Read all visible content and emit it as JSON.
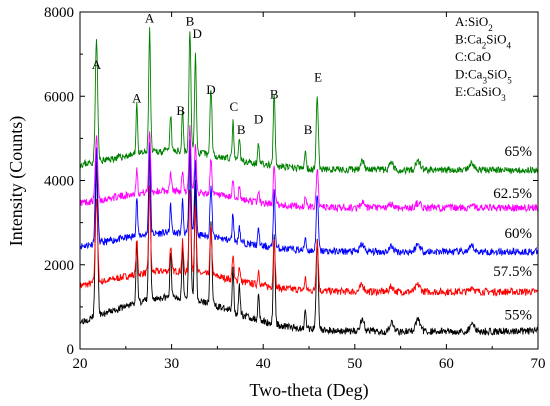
{
  "chart_data": {
    "type": "line",
    "xlabel": "Two-theta (Deg)",
    "ylabel": "Intensity (Counts)",
    "xlim": [
      20,
      70
    ],
    "ylim": [
      0,
      8000
    ],
    "x_ticks": [
      "20",
      "30",
      "40",
      "50",
      "60",
      "70"
    ],
    "y_ticks": [
      "0",
      "2000",
      "4000",
      "6000",
      "8000"
    ],
    "grid": false,
    "legend_position": "top-right",
    "legend": [
      {
        "key": "A",
        "phase": "SiO",
        "sub": "2",
        "tail": ""
      },
      {
        "key": "B",
        "phase": "Ca",
        "sub": "2",
        "tail": "SiO",
        "sub2": "4"
      },
      {
        "key": "C",
        "phase": "CaO",
        "sub": "",
        "tail": ""
      },
      {
        "key": "D",
        "phase": "Ca",
        "sub": "3",
        "tail": "SiO",
        "sub2": "5"
      },
      {
        "key": "E",
        "phase": "CaSiO",
        "sub": "3",
        "tail": ""
      }
    ],
    "peaks": [
      {
        "x": 21.8,
        "h": 1.0,
        "w": 0.18
      },
      {
        "x": 26.2,
        "h": 0.42,
        "w": 0.12
      },
      {
        "x": 27.6,
        "h": 1.0,
        "w": 0.14
      },
      {
        "x": 29.9,
        "h": 0.3,
        "w": 0.12
      },
      {
        "x": 31.2,
        "h": 0.35,
        "w": 0.12
      },
      {
        "x": 32.0,
        "h": 1.0,
        "w": 0.15
      },
      {
        "x": 32.6,
        "h": 0.8,
        "w": 0.14
      },
      {
        "x": 34.3,
        "h": 0.55,
        "w": 0.15
      },
      {
        "x": 36.7,
        "h": 0.3,
        "w": 0.12
      },
      {
        "x": 37.4,
        "h": 0.18,
        "w": 0.12
      },
      {
        "x": 39.5,
        "h": 0.18,
        "w": 0.12
      },
      {
        "x": 41.2,
        "h": 0.6,
        "w": 0.14
      },
      {
        "x": 44.6,
        "h": 0.15,
        "w": 0.12
      },
      {
        "x": 45.9,
        "h": 0.6,
        "w": 0.16
      },
      {
        "x": 50.8,
        "h": 0.08,
        "w": 0.3
      },
      {
        "x": 54.0,
        "h": 0.06,
        "w": 0.3
      },
      {
        "x": 56.9,
        "h": 0.08,
        "w": 0.35
      },
      {
        "x": 62.8,
        "h": 0.06,
        "w": 0.3
      }
    ],
    "series": [
      {
        "name": "55%",
        "color": "#000000",
        "base": 420,
        "scale": 3600,
        "rise": 900,
        "seed": 3
      },
      {
        "name": "57.5%",
        "color": "#ff0000",
        "base": 1360,
        "scale": 2000,
        "rise": 550,
        "seed": 7
      },
      {
        "name": "60%",
        "color": "#0000ff",
        "base": 2310,
        "scale": 2200,
        "rise": 500,
        "seed": 11
      },
      {
        "name": "62.5%",
        "color": "#ff00ff",
        "base": 3350,
        "scale": 1500,
        "rise": 450,
        "seed": 17
      },
      {
        "name": "65%",
        "color": "#008000",
        "base": 4250,
        "scale": 2900,
        "rise": 500,
        "seed": 23
      }
    ],
    "peak_labels": [
      {
        "text": "A",
        "x": 21.8,
        "y": 6650
      },
      {
        "text": "A",
        "x": 26.2,
        "y": 5850
      },
      {
        "text": "A",
        "x": 27.6,
        "y": 7750
      },
      {
        "text": "B",
        "x": 32.0,
        "y": 7680
      },
      {
        "text": "D",
        "x": 32.8,
        "y": 7380
      },
      {
        "text": "B",
        "x": 31.0,
        "y": 5550
      },
      {
        "text": "D",
        "x": 34.3,
        "y": 6050
      },
      {
        "text": "C",
        "x": 36.8,
        "y": 5650
      },
      {
        "text": "B",
        "x": 37.6,
        "y": 5100
      },
      {
        "text": "D",
        "x": 39.5,
        "y": 5350
      },
      {
        "text": "B",
        "x": 41.2,
        "y": 5950
      },
      {
        "text": "B",
        "x": 44.9,
        "y": 5100
      },
      {
        "text": "E",
        "x": 46.0,
        "y": 6350
      }
    ]
  }
}
